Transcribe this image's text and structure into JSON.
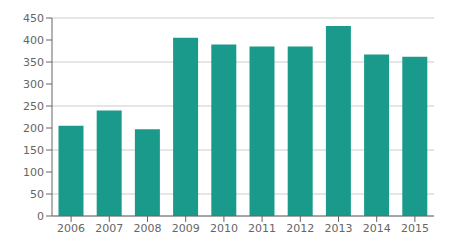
{
  "chart_data": {
    "type": "bar",
    "categories": [
      "2006",
      "2007",
      "2008",
      "2009",
      "2010",
      "2011",
      "2012",
      "2013",
      "2014",
      "2015"
    ],
    "values": [
      205,
      240,
      197,
      405,
      390,
      385,
      385,
      432,
      367,
      362
    ],
    "color": "#1a9a8a",
    "ylim": [
      0,
      450
    ],
    "yticks": [
      0,
      50,
      100,
      150,
      200,
      250,
      300,
      350,
      400,
      450
    ],
    "grid": true
  }
}
